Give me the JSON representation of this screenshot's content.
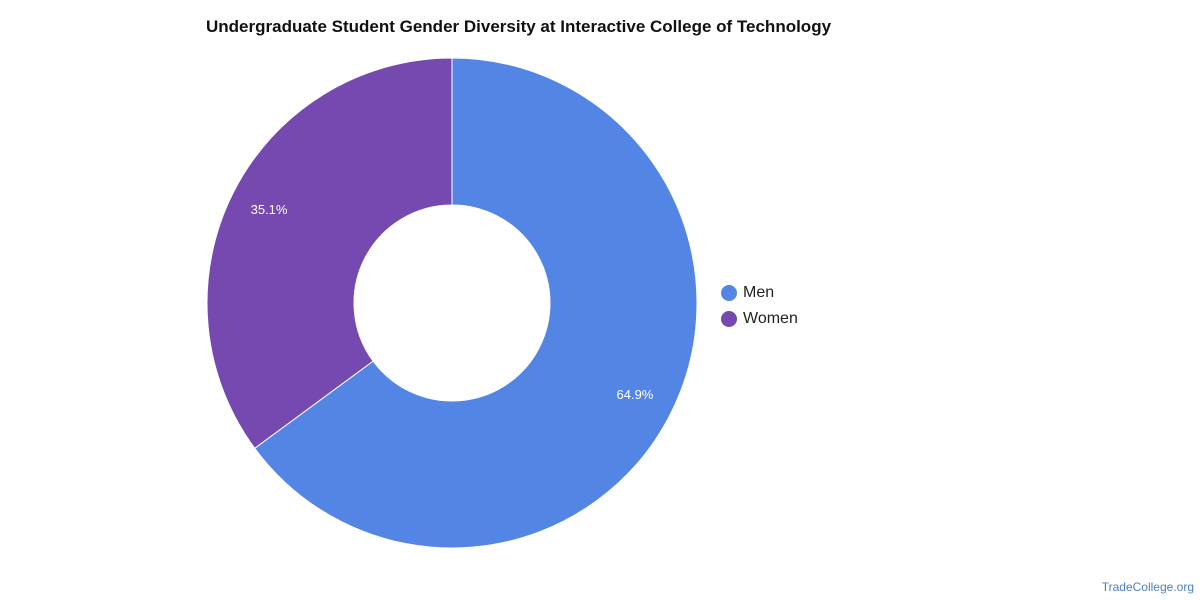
{
  "chart_data": {
    "type": "pie",
    "title": "Undergraduate Student Gender Diversity at Interactive College of Technology",
    "donut": true,
    "slices": [
      {
        "label": "Men",
        "value": 64.9,
        "display": "64.9%",
        "color": "#5386e4"
      },
      {
        "label": "Women",
        "value": 35.1,
        "display": "35.1%",
        "color": "#7649b0"
      }
    ],
    "legend_position": "right"
  },
  "watermark": "TradeCollege.org"
}
